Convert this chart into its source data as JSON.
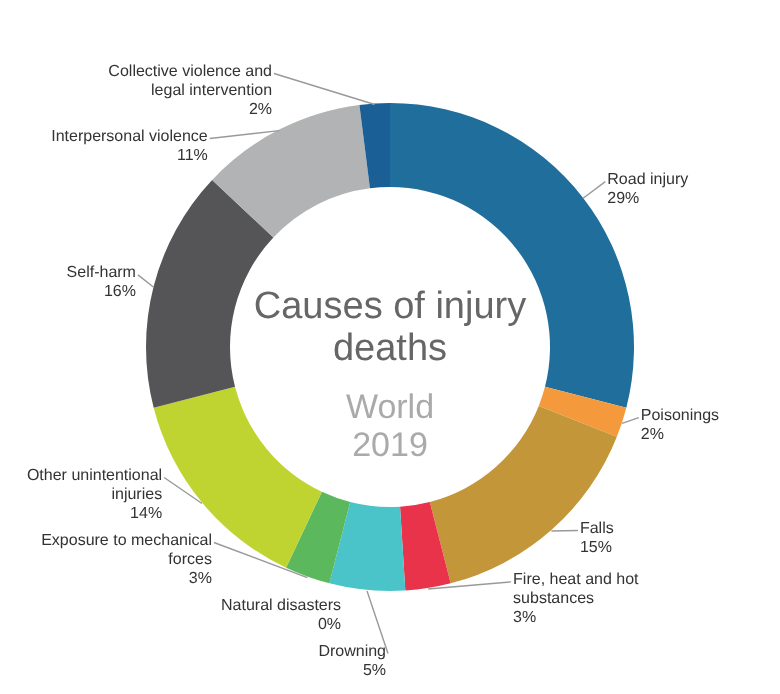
{
  "chart_data": {
    "type": "donut",
    "title": "Causes of injury deaths",
    "subtitle": "World 2019",
    "categories": [
      "Road injury",
      "Poisonings",
      "Falls",
      "Fire, heat and hot substances",
      "Drowning",
      "Exposure to mechanical forces",
      "Natural disasters",
      "Other unintentional injuries",
      "Self-harm",
      "Interpersonal violence",
      "Collective violence and legal intervention"
    ],
    "values": [
      29,
      2,
      15,
      3,
      5,
      3,
      0,
      14,
      16,
      11,
      2
    ],
    "value_labels": [
      "29%",
      "2%",
      "15%",
      "3%",
      "5%",
      "3%",
      "0%",
      "14%",
      "16%",
      "11%",
      "2%"
    ],
    "colors": [
      "#1f6e9c",
      "#f59a3c",
      "#c4963a",
      "#e8334a",
      "#4bc4c9",
      "#5cb85c",
      "#2e5e2e",
      "#c0d431",
      "#555558",
      "#b2b3b5",
      "#1a5f96"
    ]
  }
}
